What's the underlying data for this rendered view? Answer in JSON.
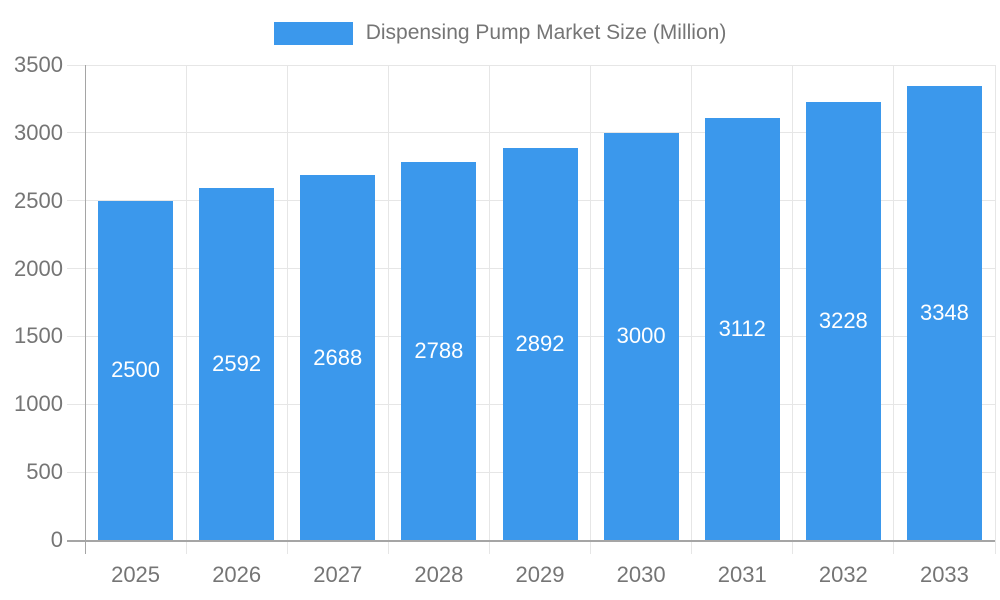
{
  "chart_data": {
    "type": "bar",
    "title": "Dispensing Pump Market Size (Million)",
    "categories": [
      "2025",
      "2026",
      "2027",
      "2028",
      "2029",
      "2030",
      "2031",
      "2032",
      "2033"
    ],
    "values": [
      2500,
      2592,
      2688,
      2788,
      2892,
      3000,
      3112,
      3228,
      3348
    ],
    "xlabel": "",
    "ylabel": "",
    "ylim": [
      0,
      3500
    ],
    "yticks": [
      0,
      500,
      1000,
      1500,
      2000,
      2500,
      3000,
      3500
    ],
    "legend_position": "top-center",
    "grid": "horizontal gridlines at each y tick and vertical gridlines at category boundaries",
    "value_labels": "white numbers centered vertically inside each bar",
    "colors": {
      "bar": "#3B98EC",
      "text": "#757575",
      "value_label": "#FFFFFF",
      "grid": "#E6E6E6",
      "axis": "#A5A5A5",
      "background": "#FFFFFF"
    }
  }
}
